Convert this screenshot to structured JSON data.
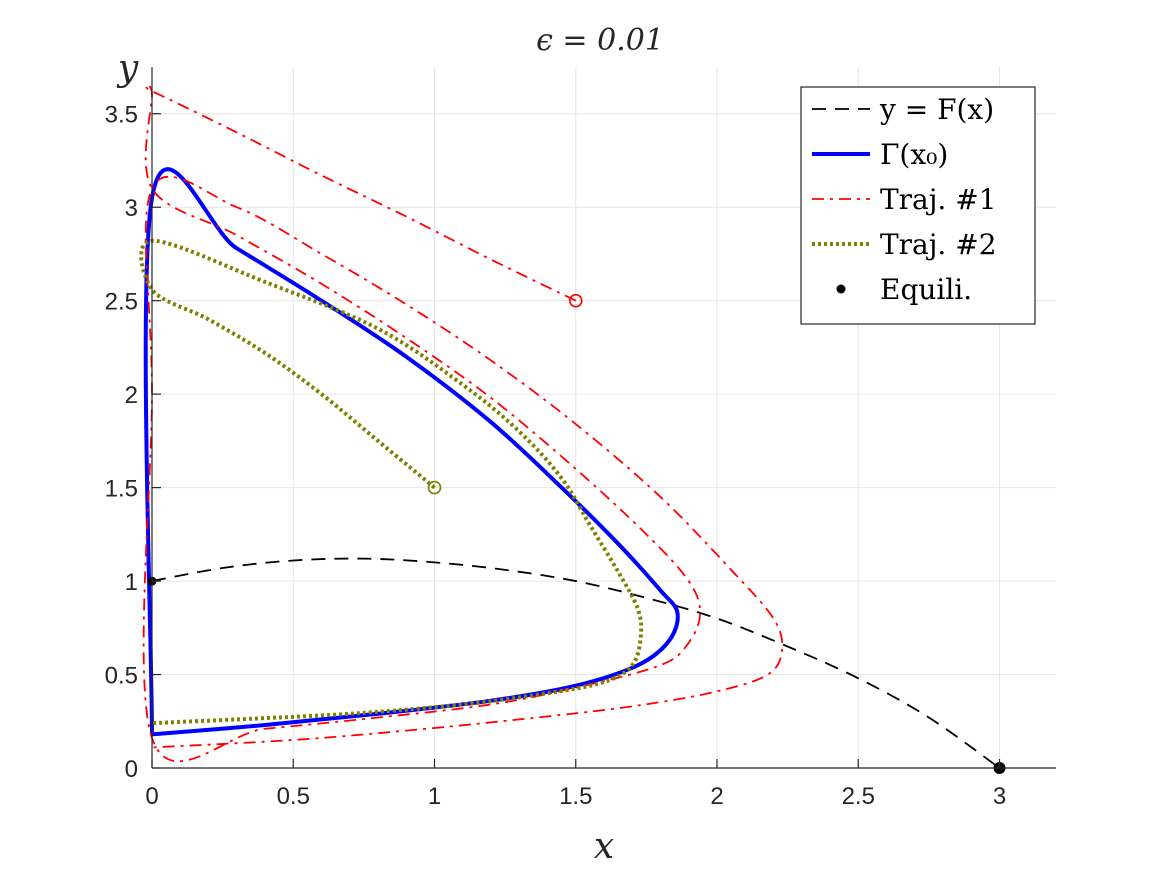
{
  "chart_data": {
    "type": "line",
    "title": "ϵ = 0.01",
    "xlabel": "x",
    "ylabel": "y",
    "xlim": [
      0,
      3.2
    ],
    "ylim": [
      0,
      3.75
    ],
    "xticks": [
      0,
      0.5,
      1,
      1.5,
      2,
      2.5,
      3
    ],
    "xtick_labels": [
      "0",
      "0.5",
      "1",
      "1.5",
      "2",
      "2.5",
      "3"
    ],
    "yticks": [
      0,
      0.5,
      1,
      1.5,
      2,
      2.5,
      3,
      3.5
    ],
    "ytick_labels": [
      "0",
      "0.5",
      "1",
      "1.5",
      "2",
      "2.5",
      "3",
      "3.5"
    ],
    "grid": true,
    "legend_position": "top-right",
    "colors": {
      "fx": "#000000",
      "gamma": "#0000ff",
      "traj1": "#ff0000",
      "traj2": "#808000",
      "equilibria": "#000000"
    },
    "legend": [
      {
        "key": "fx",
        "label": "y = F(x)"
      },
      {
        "key": "gamma",
        "label": "Γ(x₀)"
      },
      {
        "key": "traj1",
        "label": "Traj. #1"
      },
      {
        "key": "traj2",
        "label": "Traj. #2"
      },
      {
        "key": "equilibria",
        "label": "Equili."
      }
    ],
    "series": [
      {
        "key": "fx",
        "style": "dashed",
        "x": [
          0,
          0.25,
          0.5,
          0.75,
          1,
          1.25,
          1.5,
          1.75,
          2,
          2.25,
          2.5,
          2.75,
          3
        ],
        "y": [
          1,
          1.07,
          1.11,
          1.12,
          1.1,
          1.06,
          1.0,
          0.91,
          0.8,
          0.65,
          0.48,
          0.27,
          0
        ]
      },
      {
        "key": "gamma",
        "style": "solid",
        "x": [
          0,
          0,
          0.3,
          0.6,
          0.9,
          1.2,
          1.45,
          1.65,
          1.8,
          1.86,
          1.83,
          1.72,
          1.5,
          1.2,
          0.8,
          0.4,
          0
        ],
        "y": [
          0.18,
          3.05,
          2.78,
          2.5,
          2.2,
          1.85,
          1.5,
          1.2,
          0.95,
          0.83,
          0.68,
          0.55,
          0.44,
          0.36,
          0.29,
          0.23,
          0.18
        ]
      },
      {
        "key": "traj1",
        "style": "dashdot",
        "x": [
          1.5,
          1.2,
          0.9,
          0.6,
          0.3,
          0,
          0,
          0,
          0.3,
          0.6,
          0.9,
          1.2,
          1.5,
          1.75,
          1.9,
          1.94,
          1.9,
          1.8,
          1.5,
          1.2,
          0.8,
          0.4,
          0,
          0,
          0,
          0.3,
          0.6,
          0.9,
          1.2,
          1.5,
          1.8,
          2.05,
          2.2,
          2.23,
          2.18,
          2.0,
          1.7,
          1.3,
          0.9,
          0.5,
          0
        ],
        "y": [
          2.5,
          2.72,
          2.95,
          3.17,
          3.4,
          3.62,
          3.6,
          3.1,
          2.85,
          2.59,
          2.3,
          1.98,
          1.6,
          1.25,
          1.0,
          0.83,
          0.67,
          0.55,
          0.43,
          0.34,
          0.27,
          0.21,
          0.16,
          2.0,
          3.1,
          3.0,
          2.75,
          2.48,
          2.18,
          1.84,
          1.45,
          1.06,
          0.8,
          0.63,
          0.5,
          0.41,
          0.33,
          0.26,
          0.2,
          0.15,
          0.11
        ]
      },
      {
        "key": "traj2",
        "style": "dotted",
        "x": [
          1,
          0.8,
          0.6,
          0.4,
          0.2,
          0,
          0,
          0.4,
          0.8,
          1.1,
          1.3,
          1.45,
          1.55,
          1.65,
          1.72,
          1.73,
          1.7,
          1.6,
          1.4,
          1.1,
          0.7,
          0.3,
          0
        ],
        "y": [
          1.5,
          1.75,
          2.0,
          2.22,
          2.4,
          2.56,
          2.82,
          2.6,
          2.35,
          2.05,
          1.8,
          1.55,
          1.3,
          1.05,
          0.85,
          0.7,
          0.55,
          0.46,
          0.4,
          0.34,
          0.29,
          0.26,
          0.24
        ]
      }
    ],
    "equilibria": [
      [
        0,
        1
      ],
      [
        3,
        0
      ]
    ],
    "start_markers": [
      {
        "key": "traj1",
        "x": 1.5,
        "y": 2.5
      },
      {
        "key": "traj2",
        "x": 1,
        "y": 1.5
      }
    ]
  }
}
